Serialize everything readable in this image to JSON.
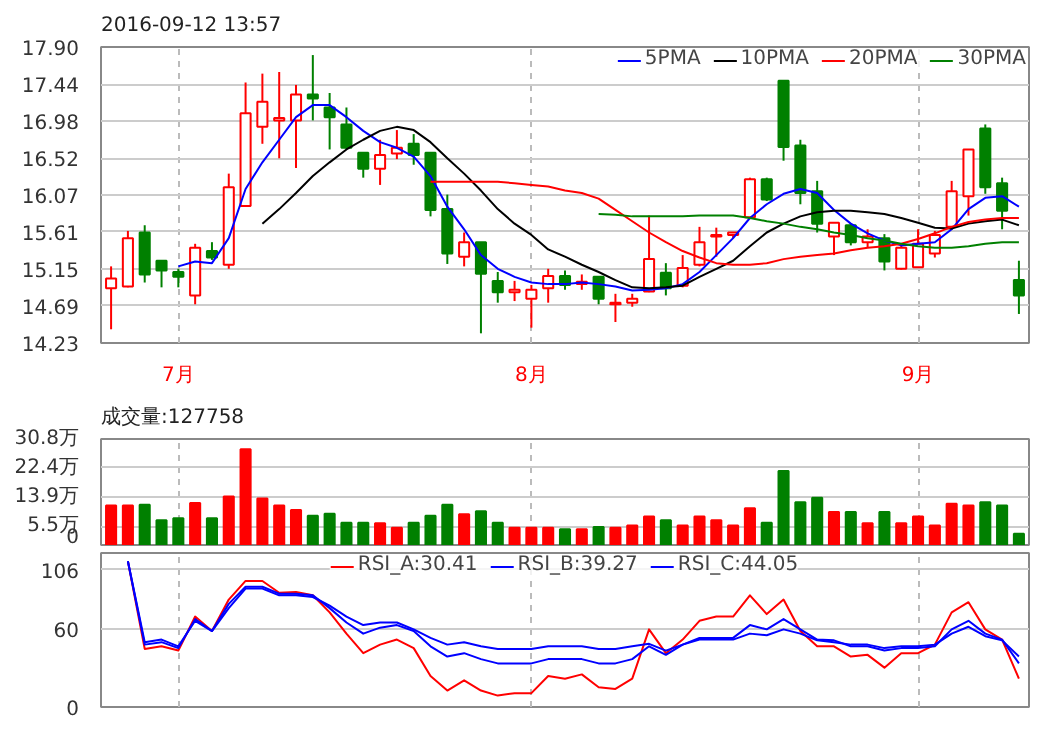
{
  "chart_data": [
    {
      "type": "candlestick",
      "title": "2016-09-12 13:57",
      "categories": [
        null,
        null,
        null,
        null,
        "7月",
        null,
        null,
        null,
        null,
        null,
        null,
        null,
        null,
        null,
        null,
        null,
        null,
        null,
        null,
        null,
        null,
        null,
        null,
        null,
        null,
        "8月",
        null,
        null,
        null,
        null,
        null,
        null,
        null,
        null,
        null,
        null,
        null,
        null,
        null,
        null,
        null,
        null,
        null,
        null,
        null,
        null,
        null,
        null,
        "9月",
        null,
        null,
        null,
        null,
        null,
        null
      ],
      "ohlc": [
        [
          14.91,
          15.18,
          14.4,
          15.03
        ],
        [
          14.93,
          15.62,
          14.92,
          15.53
        ],
        [
          15.6,
          15.69,
          14.98,
          15.08
        ],
        [
          15.25,
          15.25,
          14.92,
          15.13
        ],
        [
          15.11,
          15.15,
          14.92,
          15.05
        ],
        [
          14.82,
          15.46,
          14.71,
          15.41
        ],
        [
          15.37,
          15.48,
          15.26,
          15.29
        ],
        [
          15.2,
          16.33,
          15.15,
          16.16
        ],
        [
          15.93,
          17.46,
          15.93,
          17.08
        ],
        [
          16.91,
          17.57,
          16.7,
          17.22
        ],
        [
          16.99,
          17.59,
          16.52,
          17.02
        ],
        [
          16.99,
          17.43,
          16.4,
          17.31
        ],
        [
          17.31,
          17.8,
          16.99,
          17.26
        ],
        [
          17.15,
          17.33,
          16.63,
          17.03
        ],
        [
          16.94,
          17.15,
          16.63,
          16.65
        ],
        [
          16.59,
          16.59,
          16.28,
          16.39
        ],
        [
          16.39,
          16.75,
          16.19,
          16.56
        ],
        [
          16.58,
          16.87,
          16.51,
          16.65
        ],
        [
          16.7,
          16.82,
          16.44,
          16.56
        ],
        [
          16.59,
          16.59,
          15.8,
          15.88
        ],
        [
          15.89,
          16.07,
          15.21,
          15.34
        ],
        [
          15.3,
          15.6,
          15.18,
          15.48
        ],
        [
          15.48,
          15.48,
          14.35,
          15.09
        ],
        [
          15.0,
          15.11,
          14.73,
          14.86
        ],
        [
          14.86,
          15.0,
          14.75,
          14.89
        ],
        [
          14.78,
          14.95,
          14.42,
          14.89
        ],
        [
          14.91,
          15.15,
          14.73,
          15.06
        ],
        [
          15.06,
          15.13,
          14.89,
          14.95
        ],
        [
          14.96,
          15.08,
          14.89,
          14.99
        ],
        [
          15.05,
          15.05,
          14.71,
          14.78
        ],
        [
          14.71,
          14.84,
          14.49,
          14.73
        ],
        [
          14.73,
          14.84,
          14.68,
          14.78
        ],
        [
          14.87,
          15.81,
          14.86,
          15.27
        ],
        [
          15.1,
          15.22,
          14.82,
          14.91
        ],
        [
          14.94,
          15.32,
          14.92,
          15.16
        ],
        [
          15.2,
          15.67,
          15.18,
          15.48
        ],
        [
          15.55,
          15.66,
          15.3,
          15.57
        ],
        [
          15.57,
          15.6,
          15.53,
          15.6
        ],
        [
          15.79,
          16.28,
          15.78,
          16.26
        ],
        [
          16.26,
          16.28,
          15.99,
          16.01
        ],
        [
          17.48,
          17.48,
          16.49,
          16.66
        ],
        [
          16.68,
          16.75,
          15.95,
          16.09
        ],
        [
          16.11,
          16.24,
          15.6,
          15.71
        ],
        [
          15.55,
          15.72,
          15.32,
          15.72
        ],
        [
          15.69,
          15.71,
          15.44,
          15.48
        ],
        [
          15.48,
          15.64,
          15.41,
          15.55
        ],
        [
          15.53,
          15.58,
          15.13,
          15.24
        ],
        [
          15.15,
          15.44,
          15.14,
          15.41
        ],
        [
          15.17,
          15.64,
          15.16,
          15.46
        ],
        [
          15.34,
          15.62,
          15.29,
          15.57
        ],
        [
          15.67,
          16.24,
          15.65,
          16.11
        ],
        [
          16.05,
          16.63,
          15.81,
          16.63
        ],
        [
          16.89,
          16.94,
          16.08,
          16.16
        ],
        [
          16.21,
          16.28,
          15.64,
          15.87
        ],
        [
          15.01,
          15.25,
          14.59,
          14.82
        ]
      ],
      "colors": [
        "#ff0000",
        "#ff0000",
        "#008000",
        "#008000",
        "#008000",
        "#ff0000",
        "#008000",
        "#ff0000",
        "#ff0000",
        "#ff0000",
        "#ff0000",
        "#ff0000",
        "#008000",
        "#008000",
        "#008000",
        "#008000",
        "#ff0000",
        "#ff0000",
        "#008000",
        "#008000",
        "#008000",
        "#ff0000",
        "#008000",
        "#008000",
        "#ff0000",
        "#ff0000",
        "#ff0000",
        "#008000",
        "#ff0000",
        "#008000",
        "#ff0000",
        "#ff0000",
        "#ff0000",
        "#008000",
        "#ff0000",
        "#ff0000",
        "#ff0000",
        "#ff0000",
        "#ff0000",
        "#008000",
        "#008000",
        "#008000",
        "#008000",
        "#ff0000",
        "#008000",
        "#ff0000",
        "#008000",
        "#ff0000",
        "#ff0000",
        "#ff0000",
        "#ff0000",
        "#ff0000",
        "#008000",
        "#008000",
        "#008000"
      ],
      "series": [
        {
          "name": "5PMA",
          "type": "line",
          "color": "#0000ff",
          "values": [
            null,
            null,
            null,
            null,
            15.18,
            15.24,
            15.22,
            15.53,
            16.14,
            16.47,
            16.75,
            17.03,
            17.18,
            17.18,
            17.03,
            16.86,
            16.72,
            16.65,
            16.54,
            16.3,
            15.92,
            15.64,
            15.32,
            15.15,
            15.05,
            14.98,
            14.96,
            14.96,
            14.98,
            14.96,
            14.93,
            14.88,
            14.89,
            14.91,
            14.96,
            15.11,
            15.32,
            15.53,
            15.78,
            15.95,
            16.08,
            16.14,
            16.09,
            15.88,
            15.71,
            15.59,
            15.5,
            15.44,
            15.46,
            15.48,
            15.64,
            15.89,
            16.03,
            16.05,
            15.92
          ]
        },
        {
          "name": "10PMA",
          "type": "line",
          "color": "#000000",
          "values": [
            null,
            null,
            null,
            null,
            null,
            null,
            null,
            null,
            null,
            15.71,
            15.89,
            16.09,
            16.3,
            16.47,
            16.63,
            16.75,
            16.86,
            16.91,
            16.87,
            16.72,
            16.52,
            16.33,
            16.12,
            15.89,
            15.71,
            15.57,
            15.39,
            15.3,
            15.2,
            15.11,
            15.01,
            14.92,
            14.91,
            14.92,
            14.94,
            15.05,
            15.15,
            15.25,
            15.43,
            15.6,
            15.71,
            15.8,
            15.85,
            15.87,
            15.87,
            15.85,
            15.83,
            15.78,
            15.72,
            15.66,
            15.65,
            15.71,
            15.74,
            15.76,
            15.69
          ]
        },
        {
          "name": "20PMA",
          "type": "line",
          "color": "#ff0000",
          "values": [
            null,
            null,
            null,
            null,
            null,
            null,
            null,
            null,
            null,
            null,
            null,
            null,
            null,
            null,
            null,
            null,
            null,
            null,
            null,
            16.23,
            16.23,
            16.23,
            16.23,
            16.23,
            16.21,
            16.19,
            16.17,
            16.12,
            16.09,
            16.02,
            15.88,
            15.74,
            15.6,
            15.48,
            15.37,
            15.29,
            15.22,
            15.2,
            15.2,
            15.22,
            15.27,
            15.3,
            15.32,
            15.34,
            15.38,
            15.41,
            15.43,
            15.46,
            15.52,
            15.59,
            15.67,
            15.73,
            15.76,
            15.78,
            15.78
          ]
        },
        {
          "name": "30PMA",
          "type": "line",
          "color": "#008000",
          "values": [
            null,
            null,
            null,
            null,
            null,
            null,
            null,
            null,
            null,
            null,
            null,
            null,
            null,
            null,
            null,
            null,
            null,
            null,
            null,
            null,
            null,
            null,
            null,
            null,
            null,
            null,
            null,
            null,
            null,
            15.83,
            15.82,
            15.8,
            15.8,
            15.8,
            15.8,
            15.81,
            15.81,
            15.81,
            15.78,
            15.74,
            15.71,
            15.67,
            15.64,
            15.6,
            15.57,
            15.53,
            15.5,
            15.46,
            15.43,
            15.41,
            15.41,
            15.43,
            15.46,
            15.48,
            15.48
          ]
        }
      ],
      "ylim": [
        14.23,
        17.9
      ],
      "yticks": [
        {
          "value": 17.9,
          "label": "17.90"
        },
        17.44,
        16.98,
        16.52,
        16.07,
        15.61,
        15.15,
        14.69,
        14.23
      ],
      "grid": true,
      "legend": "top right"
    },
    {
      "type": "bar",
      "title": "成交量:127758",
      "categories": [
        null,
        null,
        null,
        null,
        null,
        null,
        null,
        null,
        null,
        null,
        null,
        null,
        null,
        null,
        null,
        null,
        null,
        null,
        null,
        null,
        null,
        null,
        null,
        null,
        null,
        null,
        null,
        null,
        null,
        null,
        null,
        null,
        null,
        null,
        null,
        null,
        null,
        null,
        null,
        null,
        null,
        null,
        null,
        null,
        null,
        null,
        null,
        null,
        null,
        null,
        null,
        null,
        null,
        null,
        null
      ],
      "values": [
        11.5,
        11.5,
        11.7,
        7.2,
        7.8,
        12.2,
        7.8,
        14.1,
        27.8,
        13.5,
        11.5,
        10.2,
        8.5,
        9.1,
        6.5,
        6.5,
        6.3,
        5,
        6.5,
        8.5,
        11.7,
        8.9,
        9.8,
        6.5,
        5,
        5,
        5,
        4.6,
        4.6,
        5.2,
        5,
        5.7,
        8.3,
        7.2,
        5.7,
        8.3,
        7.2,
        5.7,
        10.7,
        6.5,
        21.5,
        12.4,
        13.7,
        9.6,
        9.6,
        6.3,
        9.6,
        6.3,
        8.3,
        5.7,
        12,
        11.5,
        12.4,
        11.5,
        3.3
      ],
      "colors": [
        "#ff0000",
        "#ff0000",
        "#008000",
        "#008000",
        "#008000",
        "#ff0000",
        "#008000",
        "#ff0000",
        "#ff0000",
        "#ff0000",
        "#ff0000",
        "#ff0000",
        "#008000",
        "#008000",
        "#008000",
        "#008000",
        "#ff0000",
        "#ff0000",
        "#008000",
        "#008000",
        "#008000",
        "#ff0000",
        "#008000",
        "#008000",
        "#ff0000",
        "#ff0000",
        "#ff0000",
        "#008000",
        "#ff0000",
        "#008000",
        "#ff0000",
        "#ff0000",
        "#ff0000",
        "#008000",
        "#ff0000",
        "#ff0000",
        "#ff0000",
        "#ff0000",
        "#ff0000",
        "#008000",
        "#008000",
        "#008000",
        "#008000",
        "#ff0000",
        "#008000",
        "#ff0000",
        "#008000",
        "#ff0000",
        "#ff0000",
        "#ff0000",
        "#ff0000",
        "#ff0000",
        "#008000",
        "#008000",
        "#008000"
      ],
      "ylim": [
        0,
        30.8
      ],
      "yticks": [
        {
          "value": 30.8,
          "label": "30.8万"
        },
        {
          "value": 22.4,
          "label": "22.4万"
        },
        {
          "value": 13.9,
          "label": "13.9万"
        },
        {
          "value": 5.5,
          "label": "5.5万"
        },
        0
      ],
      "grid": true,
      "tick_labels": "y"
    },
    {
      "type": "line",
      "categories": [
        null,
        null,
        null,
        null,
        null,
        null,
        null,
        null,
        null,
        null,
        null,
        null,
        null,
        null,
        null,
        null,
        null,
        null,
        null,
        null,
        null,
        null,
        null,
        null,
        null,
        null,
        null,
        null,
        null,
        null,
        null,
        null,
        null,
        null,
        null,
        null,
        null,
        null,
        null,
        null,
        null,
        null,
        null,
        null,
        null,
        null,
        null,
        null,
        null,
        null,
        null,
        null,
        null,
        null,
        null
      ],
      "series": [
        {
          "name": "RSI_A:30.41",
          "color": "#ff0000",
          "values": [
            null,
            112.6,
            44.9,
            46.9,
            43.6,
            69.9,
            58.7,
            83,
            97.4,
            97.4,
            88.3,
            88.9,
            86.3,
            73.1,
            56.7,
            41.6,
            48.2,
            52.1,
            45.5,
            23.9,
            12.7,
            20.6,
            12.7,
            8.8,
            10.7,
            10.7,
            23.9,
            21.9,
            25.2,
            15.3,
            14,
            21.9,
            60,
            41.6,
            52.1,
            66.6,
            69.9,
            69.9,
            86.3,
            71.8,
            83,
            58.7,
            46.9,
            46.9,
            39,
            40.3,
            30.4,
            41.6,
            41.6,
            48.2,
            73.1,
            81,
            60,
            52.1,
            21.9
          ]
        },
        {
          "name": "RSI_B:39.27",
          "color": "#0000ff",
          "values": [
            null,
            112.6,
            48.2,
            50.1,
            45.5,
            67.9,
            58.7,
            79.7,
            92.9,
            92.9,
            87.6,
            87.6,
            86.3,
            76.4,
            65.3,
            56.7,
            61.3,
            63.3,
            58.7,
            46.9,
            39,
            41.6,
            37,
            33.7,
            33.7,
            33.7,
            37,
            37,
            37,
            33.7,
            33.7,
            37,
            46.9,
            40.3,
            48.2,
            53.4,
            53.4,
            53.4,
            63.3,
            60,
            67.9,
            60,
            52.1,
            51.5,
            46.9,
            46.9,
            43.6,
            45.5,
            45.5,
            46.9,
            60,
            66.6,
            56.7,
            52.1,
            33.7
          ]
        },
        {
          "name": "RSI_C:44.05",
          "color": "#0000ff",
          "values": [
            null,
            112.6,
            50.1,
            52.1,
            46.9,
            66.6,
            58.7,
            76.4,
            91.5,
            91.5,
            86.3,
            86.3,
            85,
            78.4,
            69.9,
            63.3,
            65.3,
            65.3,
            60,
            53.4,
            48.2,
            50.1,
            46.9,
            44.9,
            44.9,
            44.9,
            46.9,
            46.9,
            46.9,
            44.9,
            44.9,
            46.9,
            48.8,
            43.6,
            48.2,
            52.1,
            52.1,
            52.1,
            56.7,
            55.4,
            60,
            56.7,
            51.5,
            50.1,
            48.2,
            48.2,
            45.5,
            46.9,
            46.9,
            48.2,
            56.7,
            62,
            54.7,
            51.5,
            39
          ]
        }
      ],
      "ylim": [
        0,
        119
      ],
      "yticks": [
        106,
        60,
        0
      ],
      "grid": true,
      "legend": "top",
      "tick_labels": "y"
    }
  ]
}
